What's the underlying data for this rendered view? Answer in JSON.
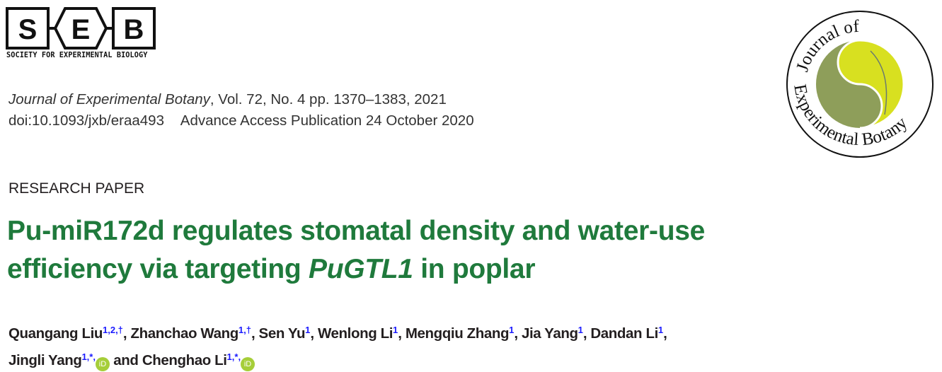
{
  "publisher_logo": {
    "letters": [
      "S",
      "E",
      "B"
    ],
    "subtitle": "SOCIETY FOR EXPERIMENTAL BIOLOGY"
  },
  "citation": {
    "journal": "Journal of Experimental Botany",
    "details": ", Vol. 72, No. 4 pp. 1370–1383, 2021",
    "doi": "doi:10.1093/jxb/eraa493",
    "advance": "Advance Access Publication 24 October 2020"
  },
  "journal_logo": {
    "text": "Journal of Experimental Botany",
    "colors": {
      "olive": "#8e9e5a",
      "yellow": "#d8e020"
    }
  },
  "article_type": "RESEARCH PAPER",
  "title": {
    "part1": "Pu-miR172d regulates stomatal density and water-use efficiency via targeting ",
    "gene": "PuGTL1",
    "part2": " in poplar",
    "color": "#1f7a3c"
  },
  "authors": [
    {
      "name": "Quangang Liu",
      "aff": "1,2,†",
      "sep": ", "
    },
    {
      "name": "Zhanchao Wang",
      "aff": "1,†",
      "sep": ", "
    },
    {
      "name": "Sen Yu",
      "aff": "1",
      "sep": ", "
    },
    {
      "name": "Wenlong Li",
      "aff": "1",
      "sep": ", "
    },
    {
      "name": "Mengqiu Zhang",
      "aff": "1",
      "sep": ", "
    },
    {
      "name": "Jia Yang",
      "aff": "1",
      "sep": ", "
    },
    {
      "name": "Dandan Li",
      "aff": "1",
      "sep": ","
    },
    {
      "name": "Jingli Yang",
      "aff": "1,*,",
      "orcid": "iD",
      "sep": " and "
    },
    {
      "name": "Chenghao Li",
      "aff": "1,*,",
      "orcid": "iD",
      "sep": ""
    }
  ]
}
